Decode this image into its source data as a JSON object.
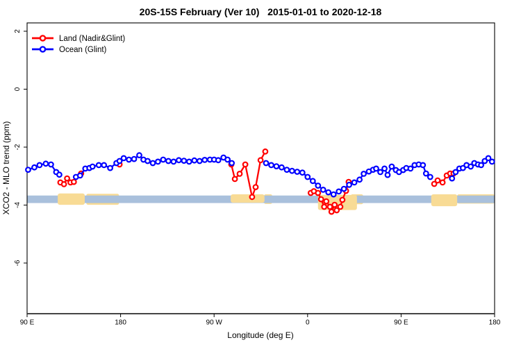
{
  "title": "20S-15S February (Ver 10)   2015-01-01 to 2020-12-18",
  "chart_data": {
    "type": "line",
    "xlabel": "Longitude (deg E)",
    "ylabel": "XCO2 - MLO trend (ppm)",
    "grid": false,
    "legend_position": "top-left",
    "marker": "open-circle",
    "x_axis": {
      "note": "longitude axis wraps: 90E eastward around globe to 180",
      "range_deg": [
        90,
        540
      ],
      "ticks": [
        {
          "deg": 90,
          "label": "90 E"
        },
        {
          "deg": 180,
          "label": "180"
        },
        {
          "deg": 270,
          "label": "90 W"
        },
        {
          "deg": 360,
          "label": "0"
        },
        {
          "deg": 450,
          "label": "90 E"
        },
        {
          "deg": 540,
          "label": "180"
        }
      ]
    },
    "y_axis": {
      "range": [
        -7.75,
        2.3
      ],
      "ticks": [
        {
          "value": 2,
          "label": "2"
        },
        {
          "value": 0,
          "label": "0"
        },
        {
          "value": -2,
          "label": "-2"
        },
        {
          "value": -4,
          "label": "-4"
        },
        {
          "value": -6,
          "label": "-6"
        }
      ]
    },
    "reference_band": {
      "y": [
        -3.93,
        -3.67
      ],
      "color": "#a9c0dc",
      "full_width": true
    },
    "shaded_regions": {
      "color": "#f8db95",
      "behind_band": [
        {
          "x": [
            147,
            178.5
          ],
          "y": [
            -3.99,
            -3.61
          ]
        },
        {
          "x": [
            318,
            326
          ],
          "y": [
            -3.96,
            -3.63
          ]
        },
        {
          "x": [
            401.5,
            413.5
          ],
          "y": [
            -3.97,
            -3.63
          ]
        },
        {
          "x": [
            504,
            540
          ],
          "y": [
            -3.95,
            -3.63
          ]
        }
      ],
      "over_band": [
        {
          "x": [
            119.5,
            145.5
          ],
          "y": [
            -3.99,
            -3.6
          ]
        },
        {
          "x": [
            286,
            318.5
          ],
          "y": [
            -3.92,
            -3.63
          ]
        },
        {
          "x": [
            370,
            407.5
          ],
          "y": [
            -4.17,
            -3.65
          ]
        },
        {
          "x": [
            479,
            504
          ],
          "y": [
            -4.04,
            -3.63
          ]
        }
      ]
    },
    "series": [
      {
        "name": "Land (Nadir&Glint)",
        "color": "#ff0000",
        "segments": [
          [
            [
              122,
              -3.22
            ],
            [
              125.5,
              -3.28
            ],
            [
              128.5,
              -3.08
            ],
            [
              131.8,
              -3.22
            ],
            [
              135,
              -3.2
            ],
            [
              142,
              -2.91
            ]
          ],
          [
            [
              179,
              -2.6
            ]
          ],
          [
            [
              286.6,
              -2.6
            ],
            [
              290,
              -3.1
            ],
            [
              294.6,
              -2.92
            ],
            [
              300,
              -2.6
            ],
            [
              306.6,
              -3.72
            ],
            [
              310,
              -3.38
            ],
            [
              314.7,
              -2.45
            ],
            [
              319.3,
              -2.15
            ]
          ],
          [
            [
              363,
              -3.58
            ],
            [
              366,
              -3.52
            ],
            [
              370,
              -3.58
            ],
            [
              373,
              -3.8
            ],
            [
              376,
              -4.06
            ],
            [
              378,
              -3.87
            ],
            [
              381.5,
              -4.06
            ],
            [
              383,
              -4.23
            ],
            [
              386,
              -3.99
            ],
            [
              388,
              -4.18
            ],
            [
              391.5,
              -4.06
            ],
            [
              393.5,
              -3.82
            ],
            [
              397,
              -3.51
            ],
            [
              399.5,
              -3.2
            ]
          ],
          [
            [
              481.9,
              -3.27
            ],
            [
              485.2,
              -3.15
            ],
            [
              489.9,
              -3.22
            ],
            [
              493.9,
              -2.98
            ],
            [
              497.2,
              -2.91
            ],
            [
              500.5,
              -2.91
            ]
          ]
        ]
      },
      {
        "name": "Ocean (Glint)",
        "color": "#0000ff",
        "segments": [
          [
            [
              91,
              -2.78
            ],
            [
              97,
              -2.7
            ],
            [
              102,
              -2.62
            ],
            [
              108,
              -2.57
            ],
            [
              113,
              -2.6
            ],
            [
              118,
              -2.86
            ],
            [
              121,
              -2.95
            ]
          ],
          [
            [
              137,
              -3.03
            ],
            [
              141,
              -2.98
            ],
            [
              146,
              -2.74
            ],
            [
              150,
              -2.72
            ],
            [
              153,
              -2.67
            ],
            [
              159,
              -2.62
            ],
            [
              164,
              -2.62
            ],
            [
              170,
              -2.72
            ],
            [
              176,
              -2.55
            ],
            [
              179,
              -2.48
            ],
            [
              183,
              -2.38
            ],
            [
              188,
              -2.43
            ],
            [
              193,
              -2.41
            ],
            [
              198,
              -2.28
            ],
            [
              202,
              -2.43
            ],
            [
              206,
              -2.48
            ],
            [
              211,
              -2.55
            ],
            [
              216,
              -2.5
            ],
            [
              221,
              -2.43
            ],
            [
              226,
              -2.48
            ],
            [
              231,
              -2.5
            ],
            [
              236,
              -2.45
            ],
            [
              241,
              -2.47
            ],
            [
              246,
              -2.5
            ],
            [
              251,
              -2.46
            ],
            [
              256,
              -2.48
            ],
            [
              261,
              -2.44
            ],
            [
              266,
              -2.43
            ],
            [
              270,
              -2.43
            ],
            [
              274,
              -2.45
            ],
            [
              279,
              -2.36
            ],
            [
              283,
              -2.43
            ],
            [
              287,
              -2.55
            ]
          ],
          [
            [
              320,
              -2.55
            ],
            [
              325,
              -2.62
            ],
            [
              330,
              -2.66
            ],
            [
              335,
              -2.7
            ],
            [
              340,
              -2.78
            ],
            [
              345,
              -2.82
            ],
            [
              350,
              -2.85
            ],
            [
              355,
              -2.88
            ],
            [
              360,
              -3.03
            ],
            [
              365,
              -3.17
            ],
            [
              370,
              -3.33
            ],
            [
              375,
              -3.47
            ],
            [
              380,
              -3.56
            ],
            [
              385,
              -3.63
            ],
            [
              390,
              -3.53
            ],
            [
              395,
              -3.44
            ],
            [
              400,
              -3.3
            ],
            [
              405,
              -3.22
            ],
            [
              410,
              -3.12
            ],
            [
              414,
              -2.92
            ],
            [
              419,
              -2.84
            ],
            [
              423,
              -2.78
            ],
            [
              426,
              -2.74
            ],
            [
              430,
              -2.86
            ],
            [
              434,
              -2.74
            ],
            [
              437,
              -2.96
            ],
            [
              441,
              -2.67
            ],
            [
              445,
              -2.79
            ],
            [
              448,
              -2.86
            ],
            [
              452,
              -2.79
            ],
            [
              455,
              -2.72
            ],
            [
              459,
              -2.74
            ],
            [
              463,
              -2.62
            ],
            [
              467,
              -2.6
            ],
            [
              471,
              -2.62
            ],
            [
              474,
              -2.91
            ],
            [
              478,
              -3.03
            ]
          ],
          [
            [
              499,
              -3.08
            ],
            [
              502.5,
              -2.86
            ],
            [
              506,
              -2.74
            ],
            [
              509.5,
              -2.72
            ],
            [
              513,
              -2.62
            ],
            [
              517,
              -2.67
            ],
            [
              520.5,
              -2.55
            ],
            [
              524,
              -2.6
            ],
            [
              527,
              -2.62
            ],
            [
              530.5,
              -2.48
            ],
            [
              534,
              -2.38
            ],
            [
              537.5,
              -2.5
            ]
          ]
        ]
      }
    ]
  }
}
